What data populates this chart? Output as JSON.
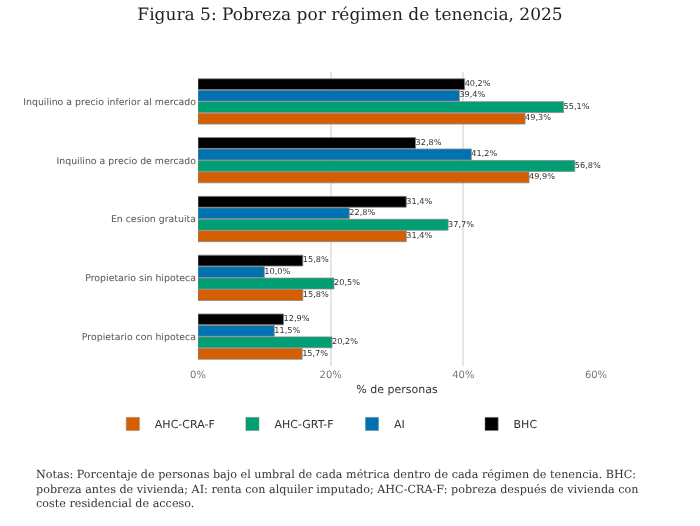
{
  "chart_data": {
    "type": "bar",
    "orientation": "horizontal",
    "title": "Figura 5: Pobreza por régimen de tenencia, 2025",
    "categories": [
      "Inquilino a precio inferior al mercado",
      "Inquilino a precio de mercado",
      "En cesion gratuita",
      "Propietario sin hipoteca",
      "Propietario con hipoteca"
    ],
    "series": [
      {
        "name": "AHC-CRA-F",
        "color": "#d55e00",
        "values": [
          49.3,
          49.9,
          31.4,
          15.8,
          15.7
        ],
        "value_labels": [
          "49,3%",
          "49,9%",
          "31,4%",
          "15,8%",
          "15,7%"
        ]
      },
      {
        "name": "AHC-GRT-F",
        "color": "#009e73",
        "values": [
          55.1,
          56.8,
          37.7,
          20.5,
          20.2
        ],
        "value_labels": [
          "55,1%",
          "56,8%",
          "37,7%",
          "20,5%",
          "20,2%"
        ]
      },
      {
        "name": "AI",
        "color": "#0072b2",
        "values": [
          39.4,
          41.2,
          22.8,
          10.0,
          11.5
        ],
        "value_labels": [
          "39,4%",
          "41,2%",
          "22,8%",
          "10,0%",
          "11,5%"
        ]
      },
      {
        "name": "BHC",
        "color": "#000000",
        "values": [
          40.2,
          32.8,
          31.4,
          15.8,
          12.9
        ],
        "value_labels": [
          "40,2%",
          "32,8%",
          "31,4%",
          "15,8%",
          "12,9%"
        ]
      }
    ],
    "xlabel": "% de personas",
    "xlim": [
      0,
      60
    ],
    "xticks": [
      {
        "value": 0,
        "label": "0%"
      },
      {
        "value": 20,
        "label": "20%"
      },
      {
        "value": 40,
        "label": "40%"
      },
      {
        "value": 60,
        "label": "60%"
      }
    ],
    "grid": "x",
    "legend": "bottom",
    "annotations": [
      "Notas: Porcentaje de personas bajo el umbral de cada métrica dentro de cada régimen de tenencia. BHC: pobreza antes de vivienda; AI: renta con alquiler imputado; AHC-CRA-F: pobreza después de vivienda con coste residencial de acceso."
    ]
  }
}
